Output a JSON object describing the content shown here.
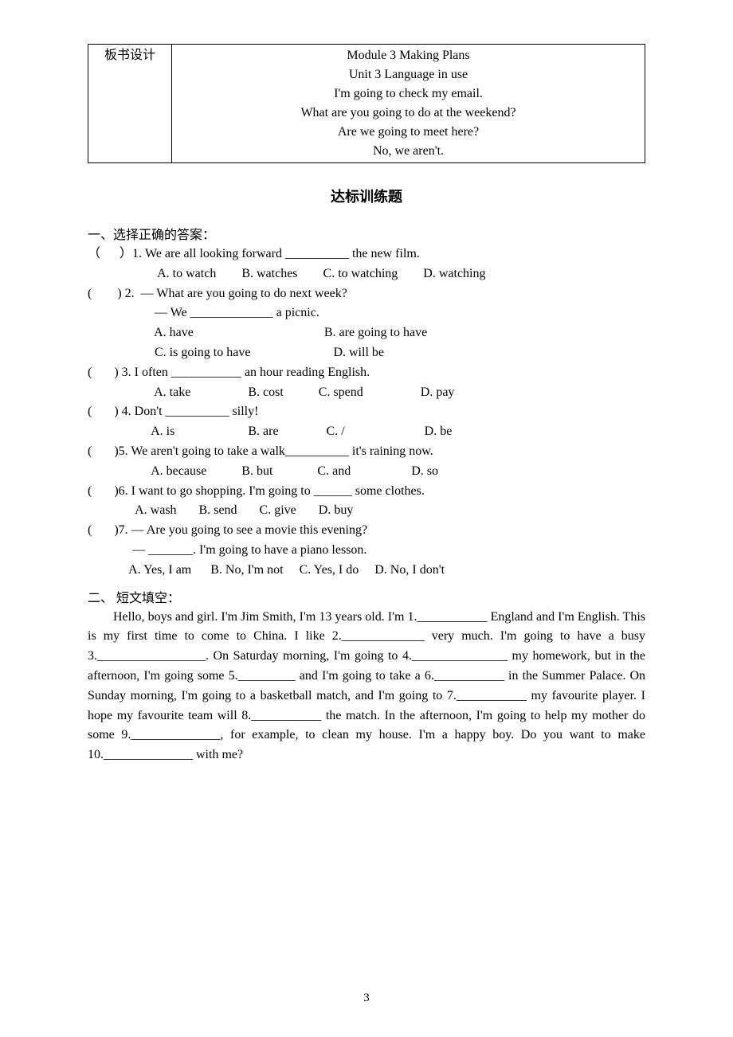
{
  "board": {
    "label": "板书设计",
    "lines": [
      "Module 3 Making Plans",
      "Unit 3 Language in use",
      "I'm going to check my email.",
      "What are you going to do at the weekend?",
      "Are we going to meet here?",
      "No, we aren't."
    ]
  },
  "exercise_title": "达标训练题",
  "section1": {
    "heading": "一、选择正确的答案：",
    "questions": [
      {
        "stem": "（      ）1. We are all looking forward __________ the new film.",
        "opts": "                      A. to watch        B. watches        C. to watching        D. watching"
      },
      {
        "stem": "(        ) 2.  — What are you going to do next week?",
        "cont": "                     — We _____________ a picnic.",
        "optsA": "                     A. have                                         B. are going to have",
        "optsB": "                     C. is going to have                          D. will be"
      },
      {
        "stem": "(       ) 3. I often ___________ an hour reading English.",
        "opts": "                     A. take                  B. cost           C. spend                  D. pay"
      },
      {
        "stem": "(       ) 4. Don't __________ silly!",
        "opts": "                    A. is                       B. are               C. /                         D. be"
      },
      {
        "stem": "(       )5. We aren't going to take a walk__________ it's raining now.",
        "opts": "                    A. because           B. but              C. and                   D. so"
      },
      {
        "stem": "(       )6. I want to go shopping. I'm going to ______ some clothes.",
        "opts": "               A. wash       B. send       C. give       D. buy"
      },
      {
        "stem": "(       )7. — Are you going to see a movie this evening?",
        "cont": "              — _______. I'm going to have a piano lesson.",
        "opts": "             A. Yes, I am      B. No, I'm not     C. Yes, I do     D. No, I don't"
      }
    ]
  },
  "section2": {
    "heading": "二、 短文填空：",
    "passage": "Hello, boys and girl. I'm Jim Smith, I'm 13 years old. I'm 1.___________ England and I'm English. This is my first time to come to China. I like 2._____________ very much. I'm going to have a busy 3._________________. On Saturday morning, I'm going to 4._______________ my homework, but in the afternoon, I'm going some 5._________ and I'm going to take a 6.___________ in the Summer Palace. On Sunday morning, I'm going to a basketball match, and I'm going to 7.___________ my favourite player. I hope my favourite team will 8.___________ the match. In the afternoon, I'm going to help my mother do some 9.______________, for example, to clean my house. I'm a happy boy. Do you want to make 10.______________ with me?"
  },
  "page_number": "3"
}
